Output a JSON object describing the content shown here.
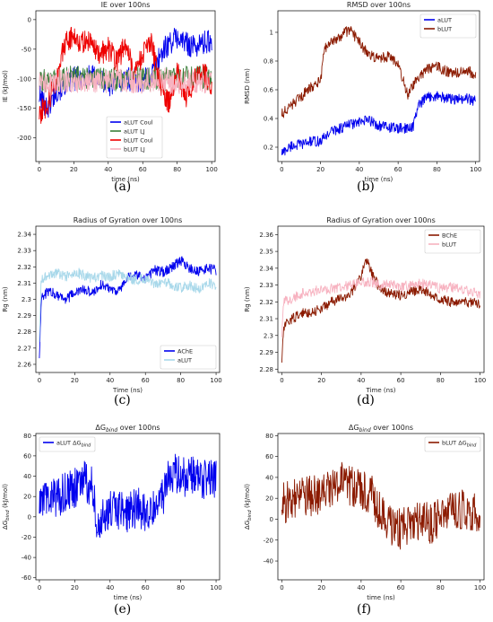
{
  "figure": {
    "panel_labels": [
      "(a)",
      "(b)",
      "(c)",
      "(d)",
      "(e)",
      "(f)"
    ]
  },
  "chart_data": [
    {
      "id": "a",
      "type": "line",
      "title": "IE over 100ns",
      "xlabel": "time (ns)",
      "ylabel": "IE (kJ/mol)",
      "xlim": [
        -2,
        102
      ],
      "ylim": [
        -240,
        15
      ],
      "xticks": [
        0,
        20,
        40,
        60,
        80,
        100
      ],
      "yticks": [
        -200,
        -150,
        -100,
        -50,
        0
      ],
      "legend_position": "bottom-center",
      "series": [
        {
          "name": "aLUT Coul",
          "color": "#0000ee",
          "x": [
            0,
            5,
            10,
            15,
            20,
            30,
            40,
            50,
            60,
            65,
            70,
            75,
            80,
            85,
            90,
            95,
            100
          ],
          "y": [
            -130,
            -150,
            -120,
            -110,
            -100,
            -95,
            -110,
            -100,
            -105,
            -95,
            -60,
            -40,
            -30,
            -40,
            -45,
            -40,
            -35
          ]
        },
        {
          "name": "aLUT LJ",
          "color": "#3a7f3a",
          "x": [
            0,
            10,
            20,
            30,
            40,
            50,
            60,
            70,
            80,
            90,
            100
          ],
          "y": [
            -105,
            -100,
            -98,
            -100,
            -102,
            -100,
            -99,
            -101,
            -100,
            -98,
            -100
          ]
        },
        {
          "name": "bLUT Coul",
          "color": "#ee0000",
          "x": [
            0,
            5,
            10,
            15,
            20,
            25,
            30,
            35,
            40,
            45,
            50,
            55,
            60,
            65,
            70,
            75,
            80,
            85,
            90,
            95,
            100
          ],
          "y": [
            -160,
            -140,
            -100,
            -40,
            -25,
            -40,
            -35,
            -60,
            -50,
            -70,
            -40,
            -90,
            -60,
            -40,
            -110,
            -140,
            -90,
            -130,
            -100,
            -90,
            -110
          ]
        },
        {
          "name": "bLUT LJ",
          "color": "#f7b2c0",
          "x": [
            0,
            10,
            20,
            30,
            40,
            50,
            60,
            70,
            80,
            90,
            100
          ],
          "y": [
            -110,
            -105,
            -102,
            -106,
            -104,
            -103,
            -105,
            -100,
            -108,
            -104,
            -105
          ]
        }
      ]
    },
    {
      "id": "b",
      "type": "line",
      "title": "RMSD over 100ns",
      "xlabel": "time (ns)",
      "ylabel": "RMSD (nm)",
      "xlim": [
        -2,
        102
      ],
      "ylim": [
        0.1,
        1.15
      ],
      "xticks": [
        0,
        20,
        40,
        60,
        80,
        100
      ],
      "yticks": [
        0.2,
        0.4,
        0.6,
        0.8,
        1.0
      ],
      "legend_position": "top-right",
      "series": [
        {
          "name": "aLUT",
          "color": "#0000ee",
          "x": [
            0,
            5,
            10,
            15,
            20,
            25,
            30,
            35,
            40,
            45,
            50,
            55,
            60,
            65,
            68,
            70,
            75,
            80,
            85,
            90,
            95,
            100
          ],
          "y": [
            0.16,
            0.21,
            0.22,
            0.24,
            0.24,
            0.31,
            0.33,
            0.36,
            0.37,
            0.39,
            0.35,
            0.34,
            0.33,
            0.33,
            0.35,
            0.48,
            0.55,
            0.56,
            0.54,
            0.53,
            0.54,
            0.52
          ]
        },
        {
          "name": "bLUT",
          "color": "#8b1a00",
          "x": [
            0,
            5,
            10,
            15,
            20,
            22,
            25,
            30,
            35,
            40,
            45,
            50,
            55,
            60,
            65,
            70,
            75,
            80,
            85,
            90,
            95,
            100
          ],
          "y": [
            0.43,
            0.49,
            0.55,
            0.62,
            0.66,
            0.88,
            0.92,
            0.97,
            1.02,
            0.93,
            0.84,
            0.82,
            0.83,
            0.78,
            0.56,
            0.68,
            0.74,
            0.76,
            0.73,
            0.72,
            0.74,
            0.7
          ]
        }
      ]
    },
    {
      "id": "c",
      "type": "line",
      "title": "Radius of Gyration over 100ns",
      "xlabel": "Time (ns)",
      "ylabel": "Rg (nm)",
      "xlim": [
        -2,
        102
      ],
      "ylim": [
        2.255,
        2.345
      ],
      "xticks": [
        0,
        20,
        40,
        60,
        80,
        100
      ],
      "yticks": [
        2.26,
        2.27,
        2.28,
        2.29,
        2.3,
        2.31,
        2.32,
        2.33,
        2.34
      ],
      "legend_position": "bottom-right",
      "series": [
        {
          "name": "AChE",
          "color": "#0000ee",
          "x": [
            0,
            1,
            5,
            10,
            15,
            20,
            25,
            30,
            35,
            40,
            45,
            50,
            55,
            60,
            65,
            70,
            75,
            80,
            85,
            90,
            95,
            100
          ],
          "y": [
            2.265,
            2.3,
            2.305,
            2.303,
            2.3,
            2.304,
            2.306,
            2.304,
            2.309,
            2.307,
            2.305,
            2.313,
            2.315,
            2.313,
            2.318,
            2.317,
            2.32,
            2.324,
            2.319,
            2.317,
            2.319,
            2.318
          ]
        },
        {
          "name": "aLUT",
          "color": "#a8d8ea",
          "x": [
            0,
            1,
            5,
            10,
            15,
            20,
            25,
            30,
            35,
            40,
            45,
            50,
            55,
            60,
            65,
            70,
            75,
            80,
            85,
            90,
            95,
            100
          ],
          "y": [
            2.275,
            2.312,
            2.315,
            2.316,
            2.314,
            2.317,
            2.315,
            2.313,
            2.315,
            2.314,
            2.316,
            2.313,
            2.312,
            2.313,
            2.309,
            2.311,
            2.309,
            2.307,
            2.309,
            2.306,
            2.31,
            2.309
          ]
        }
      ]
    },
    {
      "id": "d",
      "type": "line",
      "title": "Radius of Gyration over 100ns",
      "xlabel": "Time (ns)",
      "ylabel": "Rg (nm)",
      "xlim": [
        -2,
        102
      ],
      "ylim": [
        2.278,
        2.365
      ],
      "xticks": [
        0,
        20,
        40,
        60,
        80,
        100
      ],
      "yticks": [
        2.28,
        2.29,
        2.3,
        2.31,
        2.32,
        2.33,
        2.34,
        2.35,
        2.36
      ],
      "legend_position": "top-right",
      "series": [
        {
          "name": "BChE",
          "color": "#8b1a00",
          "x": [
            0,
            1,
            5,
            10,
            15,
            20,
            25,
            30,
            35,
            40,
            43,
            46,
            50,
            55,
            60,
            65,
            70,
            75,
            80,
            85,
            90,
            95,
            100
          ],
          "y": [
            2.285,
            2.305,
            2.31,
            2.313,
            2.314,
            2.316,
            2.32,
            2.322,
            2.325,
            2.336,
            2.346,
            2.335,
            2.327,
            2.325,
            2.324,
            2.326,
            2.327,
            2.325,
            2.322,
            2.32,
            2.319,
            2.32,
            2.318
          ]
        },
        {
          "name": "bLUT",
          "color": "#f7b2c0",
          "x": [
            0,
            1,
            5,
            10,
            15,
            20,
            25,
            30,
            35,
            40,
            45,
            50,
            55,
            60,
            65,
            70,
            75,
            80,
            85,
            90,
            95,
            100
          ],
          "y": [
            2.3,
            2.32,
            2.322,
            2.325,
            2.326,
            2.327,
            2.328,
            2.329,
            2.33,
            2.331,
            2.332,
            2.33,
            2.331,
            2.329,
            2.33,
            2.331,
            2.33,
            2.328,
            2.329,
            2.327,
            2.326,
            2.325
          ]
        }
      ]
    },
    {
      "id": "e",
      "type": "line",
      "title": "ΔG_bind over 100ns",
      "xlabel": "time (ns)",
      "ylabel": "ΔG_bind (kJ/mol)",
      "xlim": [
        -2,
        102
      ],
      "ylim": [
        -62,
        82
      ],
      "xticks": [
        0,
        20,
        40,
        60,
        80,
        100
      ],
      "yticks": [
        -60,
        -40,
        -20,
        0,
        20,
        40,
        60,
        80
      ],
      "legend_position": "top-left",
      "series": [
        {
          "name": "aLUT ΔG_bind",
          "color": "#0000ee",
          "x": [
            0,
            5,
            10,
            15,
            20,
            25,
            30,
            32,
            35,
            40,
            45,
            50,
            55,
            60,
            65,
            70,
            72,
            75,
            80,
            85,
            90,
            95,
            100
          ],
          "y": [
            10,
            22,
            18,
            25,
            28,
            35,
            30,
            0,
            -5,
            5,
            8,
            2,
            10,
            5,
            12,
            20,
            40,
            45,
            38,
            42,
            40,
            35,
            38
          ]
        }
      ]
    },
    {
      "id": "f",
      "type": "line",
      "title": "ΔG_bind over 100ns",
      "xlabel": "time (ns)",
      "ylabel": "ΔG_bind (kJ/mol)",
      "xlim": [
        -2,
        102
      ],
      "ylim": [
        -58,
        82
      ],
      "xticks": [
        0,
        20,
        40,
        60,
        80,
        100
      ],
      "yticks": [
        -40,
        -20,
        0,
        20,
        40,
        60,
        80
      ],
      "legend_position": "top-right",
      "series": [
        {
          "name": "bLUT ΔG_bind",
          "color": "#8b1a00",
          "x": [
            0,
            5,
            10,
            15,
            20,
            25,
            30,
            35,
            40,
            45,
            50,
            55,
            60,
            65,
            70,
            75,
            80,
            85,
            90,
            95,
            100
          ],
          "y": [
            15,
            18,
            20,
            22,
            25,
            30,
            35,
            32,
            28,
            25,
            5,
            -5,
            -10,
            -5,
            0,
            -5,
            5,
            8,
            10,
            5,
            8
          ]
        }
      ]
    }
  ]
}
